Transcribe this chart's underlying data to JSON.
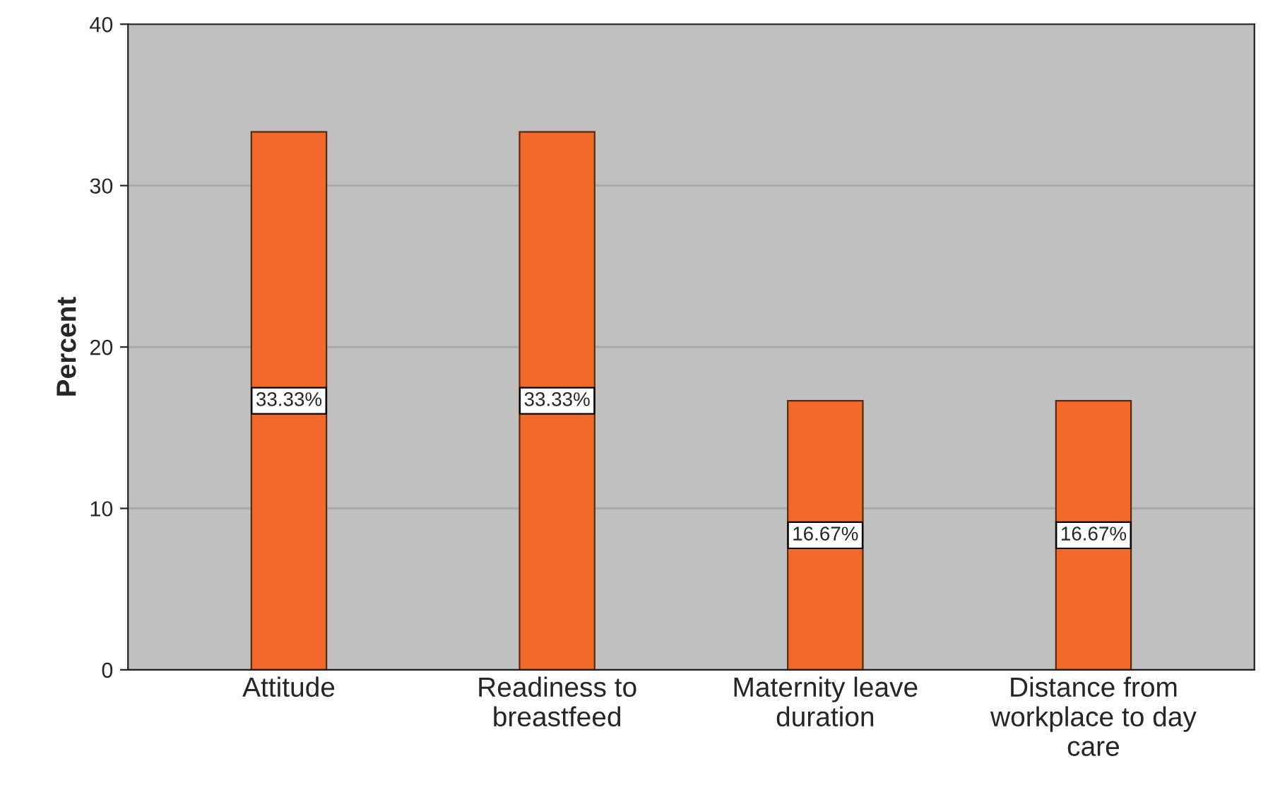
{
  "chart_data": {
    "type": "bar",
    "ylabel": "Percent",
    "categories": [
      "Attitude",
      "Readiness to\nbreastfeed",
      "Maternity leave\nduration",
      "Distance from\nworkplace to day\ncare"
    ],
    "values": [
      33.33,
      33.33,
      16.67,
      16.67
    ],
    "value_labels": [
      "33.33%",
      "33.33%",
      "16.67%",
      "16.67%"
    ],
    "color": "#f26a2a",
    "ylim": [
      0,
      40
    ],
    "yticks": [
      0,
      10,
      20,
      30,
      40
    ],
    "grid": "y"
  }
}
